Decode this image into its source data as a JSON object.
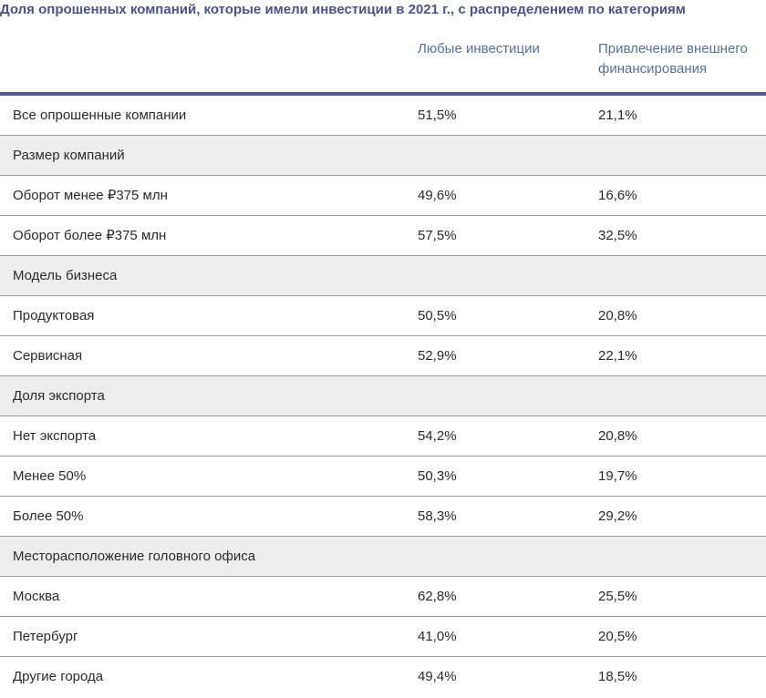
{
  "title": "Доля опрошенных компаний, которые имели инвестиции в 2021 г., с распределением по категориям",
  "columns": {
    "any_investment": "Любые инвестиции",
    "external_financing": "Привлечение внешнего финансирования"
  },
  "rows": [
    {
      "type": "data",
      "label": "Все опрошенные компании",
      "any": "51,5%",
      "external": "21,1%"
    },
    {
      "type": "category",
      "label": "Размер компаний"
    },
    {
      "type": "data",
      "label": "Оборот менее ₽375 млн",
      "any": "49,6%",
      "external": "16,6%"
    },
    {
      "type": "data",
      "label": "Оборот более ₽375 млн",
      "any": "57,5%",
      "external": "32,5%"
    },
    {
      "type": "category",
      "label": "Модель бизнеса"
    },
    {
      "type": "data",
      "label": "Продуктовая",
      "any": "50,5%",
      "external": "20,8%"
    },
    {
      "type": "data",
      "label": "Сервисная",
      "any": "52,9%",
      "external": "22,1%"
    },
    {
      "type": "category",
      "label": "Доля экспорта"
    },
    {
      "type": "data",
      "label": "Нет экспорта",
      "any": "54,2%",
      "external": "20,8%"
    },
    {
      "type": "data",
      "label": "Менее 50%",
      "any": "50,3%",
      "external": "19,7%"
    },
    {
      "type": "data",
      "label": "Более 50%",
      "any": "58,3%",
      "external": "29,2%"
    },
    {
      "type": "category",
      "label": "Месторасположение головного офиса"
    },
    {
      "type": "data",
      "label": "Москва",
      "any": "62,8%",
      "external": "25,5%"
    },
    {
      "type": "data",
      "label": "Петербург",
      "any": "41,0%",
      "external": "20,5%"
    },
    {
      "type": "data",
      "label": "Другие города",
      "any": "49,4%",
      "external": "18,5%"
    }
  ]
}
